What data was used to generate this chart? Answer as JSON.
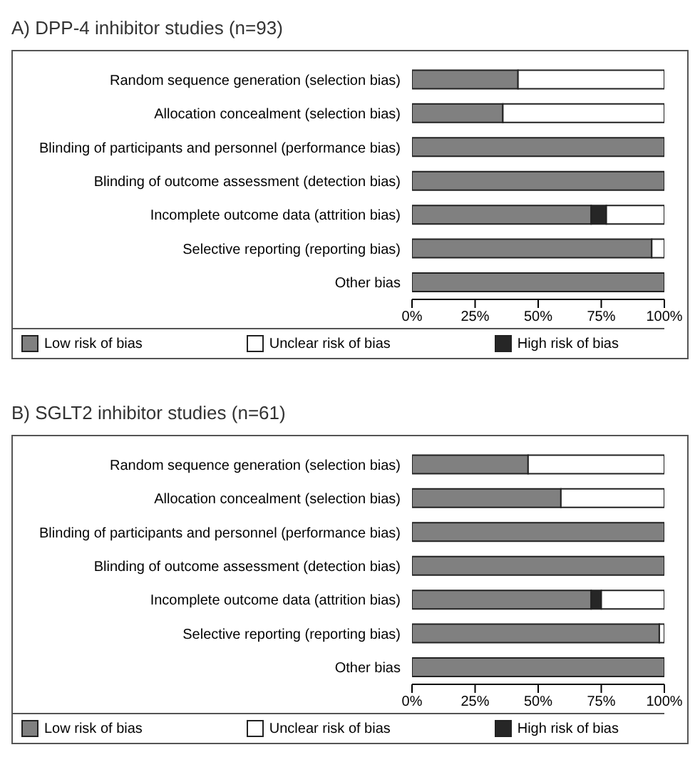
{
  "chart_data": [
    {
      "type": "bar",
      "title": "A) DPP-4 inhibitor studies (n=93)",
      "orientation": "horizontal",
      "stacked": true,
      "categories": [
        "Random sequence generation (selection bias)",
        "Allocation concealment (selection bias)",
        "Blinding of participants and personnel (performance bias)",
        "Blinding of outcome assessment (detection bias)",
        "Incomplete outcome data (attrition bias)",
        "Selective reporting (reporting bias)",
        "Other bias"
      ],
      "series": [
        {
          "name": "Low risk of bias",
          "color": "#808080",
          "values": [
            42,
            36,
            100,
            100,
            71,
            95,
            100
          ]
        },
        {
          "name": "High risk of bias",
          "color": "#262626",
          "values": [
            0,
            0,
            0,
            0,
            6,
            0,
            0
          ]
        },
        {
          "name": "Unclear risk of bias",
          "color": "#ffffff",
          "values": [
            58,
            64,
            0,
            0,
            23,
            5,
            0
          ]
        }
      ],
      "xlim": [
        0,
        100
      ],
      "xticks": [
        {
          "value": 0,
          "label": "0%"
        },
        {
          "value": 25,
          "label": "25%"
        },
        {
          "value": 50,
          "label": "50%"
        },
        {
          "value": 75,
          "label": "75%"
        },
        {
          "value": 100,
          "label": "100%"
        }
      ],
      "grid": false,
      "legend": "bottom"
    },
    {
      "type": "bar",
      "title": "B) SGLT2 inhibitor studies (n=61)",
      "orientation": "horizontal",
      "stacked": true,
      "categories": [
        "Random sequence generation (selection bias)",
        "Allocation concealment (selection bias)",
        "Blinding of participants and personnel (performance bias)",
        "Blinding of outcome assessment (detection bias)",
        "Incomplete outcome data (attrition bias)",
        "Selective reporting (reporting bias)",
        "Other bias"
      ],
      "series": [
        {
          "name": "Low risk of bias",
          "color": "#808080",
          "values": [
            46,
            59,
            100,
            100,
            71,
            98,
            100
          ]
        },
        {
          "name": "High risk of bias",
          "color": "#262626",
          "values": [
            0,
            0,
            0,
            0,
            4,
            0,
            0
          ]
        },
        {
          "name": "Unclear risk of bias",
          "color": "#ffffff",
          "values": [
            54,
            41,
            0,
            0,
            25,
            2,
            0
          ]
        }
      ],
      "xlim": [
        0,
        100
      ],
      "xticks": [
        {
          "value": 0,
          "label": "0%"
        },
        {
          "value": 25,
          "label": "25%"
        },
        {
          "value": 50,
          "label": "50%"
        },
        {
          "value": 75,
          "label": "75%"
        },
        {
          "value": 100,
          "label": "100%"
        }
      ],
      "grid": false,
      "legend": "bottom"
    }
  ]
}
